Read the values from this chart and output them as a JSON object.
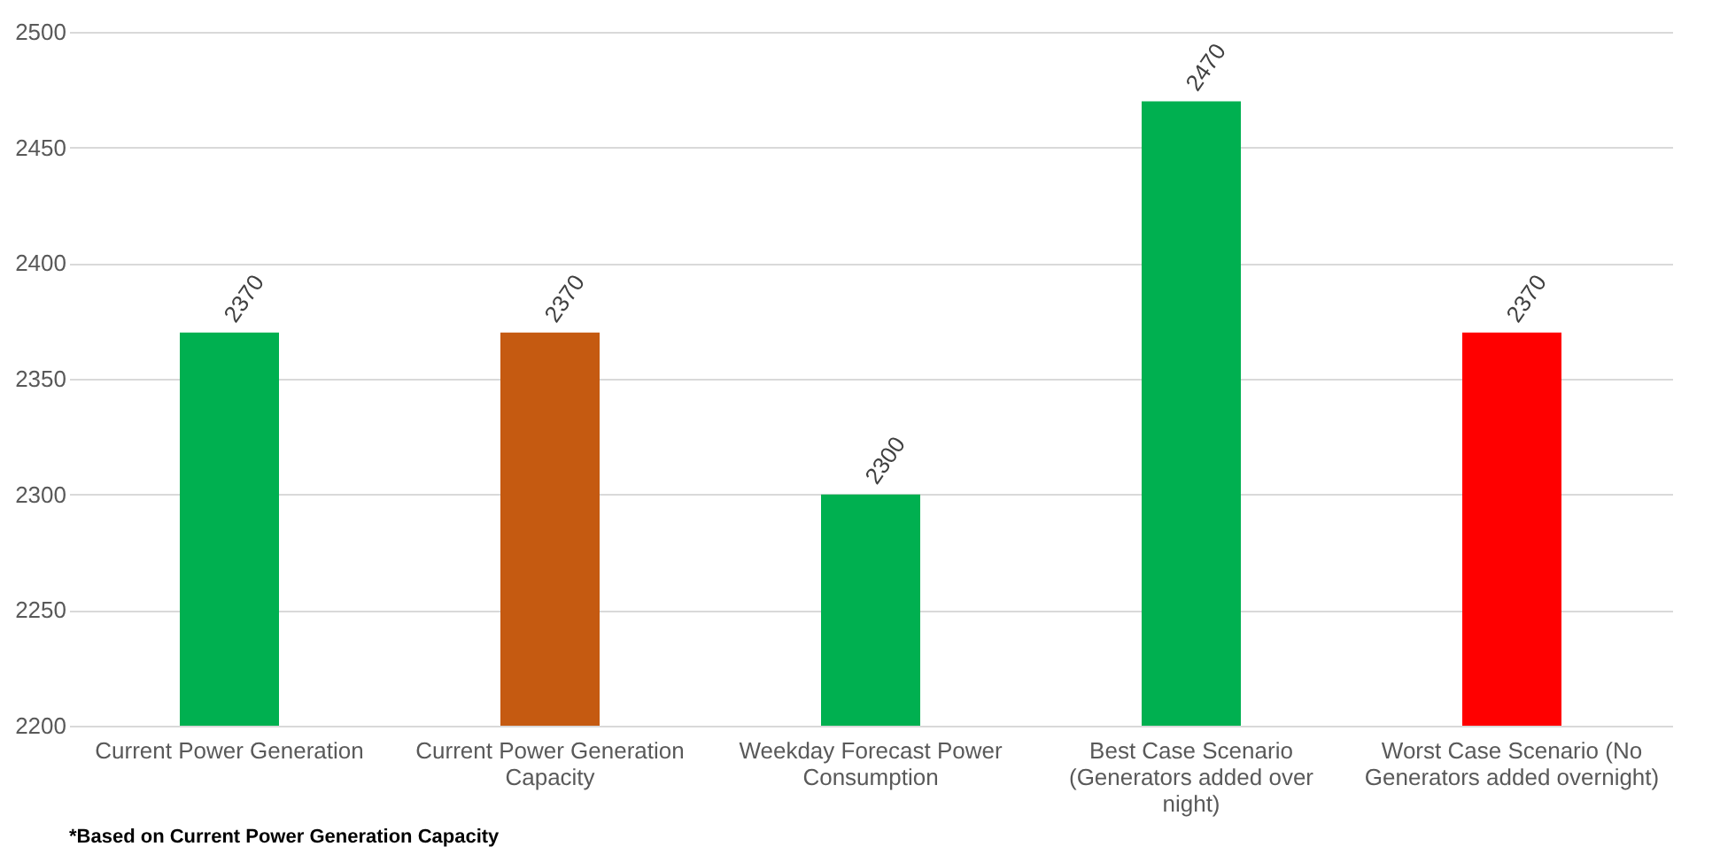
{
  "chart_data": {
    "type": "bar",
    "categories": [
      "Current Power Generation",
      "Current Power Generation Capacity",
      "Weekday Forecast Power Consumption",
      "Best Case Scenario (Generators added over night)",
      "Worst Case Scenario (No Generators added overnight)"
    ],
    "values": [
      2370,
      2370,
      2300,
      2470,
      2370
    ],
    "colors": [
      "#00b050",
      "#c55a11",
      "#00b050",
      "#00b050",
      "#ff0000"
    ],
    "ylim": [
      2200,
      2500
    ],
    "yticks": [
      2200,
      2250,
      2300,
      2350,
      2400,
      2450,
      2500
    ],
    "grid": "y",
    "data_labels": true,
    "annotations": [
      "*Based on Current Power Generation Capacity"
    ]
  }
}
